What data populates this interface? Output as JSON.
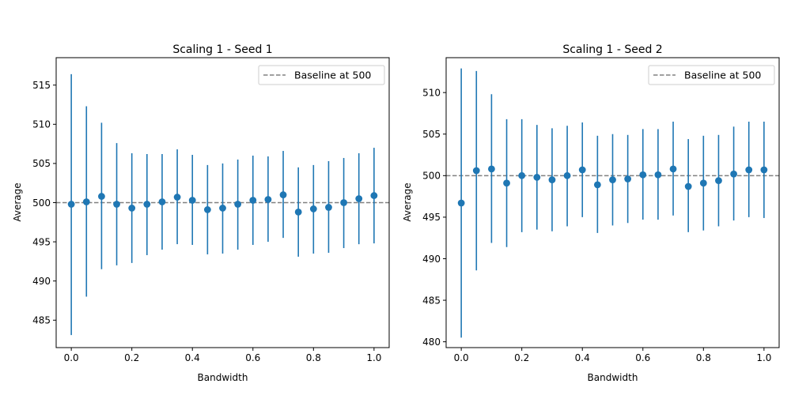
{
  "chart_data": [
    {
      "type": "scatter",
      "title": "Scaling 1 - Seed 1",
      "xlabel": "Bandwidth",
      "ylabel": "Average",
      "xlim": [
        -0.05,
        1.05
      ],
      "ylim": [
        481.5,
        518.5
      ],
      "xticks": [
        "0.0",
        "0.2",
        "0.4",
        "0.6",
        "0.8",
        "1.0"
      ],
      "yticks": [
        "485",
        "490",
        "495",
        "500",
        "505",
        "510",
        "515"
      ],
      "baseline": {
        "name": "Baseline at 500",
        "value": 500
      },
      "legend": "upper right",
      "color": "#1f77b4",
      "x": [
        0.0,
        0.05,
        0.1,
        0.15,
        0.2,
        0.25,
        0.3,
        0.35,
        0.4,
        0.45,
        0.5,
        0.55,
        0.6,
        0.65,
        0.7,
        0.75,
        0.8,
        0.85,
        0.9,
        0.95,
        1.0
      ],
      "y": [
        499.8,
        500.1,
        500.8,
        499.8,
        499.3,
        499.8,
        500.1,
        500.7,
        500.3,
        499.1,
        499.3,
        499.8,
        500.3,
        500.4,
        501.0,
        498.8,
        499.2,
        499.4,
        500.0,
        500.5,
        500.9
      ],
      "err_low": [
        483.1,
        488.0,
        491.5,
        492.0,
        492.3,
        493.3,
        494.0,
        494.7,
        494.6,
        493.4,
        493.5,
        494.0,
        494.6,
        495.0,
        495.5,
        493.1,
        493.5,
        493.6,
        494.2,
        494.7,
        494.8
      ],
      "err_high": [
        516.4,
        512.3,
        510.2,
        507.6,
        506.3,
        506.2,
        506.2,
        506.8,
        506.1,
        504.8,
        505.0,
        505.5,
        506.0,
        505.9,
        506.6,
        504.5,
        504.8,
        505.3,
        505.7,
        506.3,
        507.0
      ]
    },
    {
      "type": "scatter",
      "title": "Scaling 1 - Seed 2",
      "xlabel": "Bandwidth",
      "ylabel": "Average",
      "xlim": [
        -0.05,
        1.05
      ],
      "ylim": [
        479.3,
        514.2
      ],
      "xticks": [
        "0.0",
        "0.2",
        "0.4",
        "0.6",
        "0.8",
        "1.0"
      ],
      "yticks": [
        "480",
        "485",
        "490",
        "495",
        "500",
        "505",
        "510"
      ],
      "baseline": {
        "name": "Baseline at 500",
        "value": 500
      },
      "legend": "upper right",
      "color": "#1f77b4",
      "x": [
        0.0,
        0.05,
        0.1,
        0.15,
        0.2,
        0.25,
        0.3,
        0.35,
        0.4,
        0.45,
        0.5,
        0.55,
        0.6,
        0.65,
        0.7,
        0.75,
        0.8,
        0.85,
        0.9,
        0.95,
        1.0
      ],
      "y": [
        496.7,
        500.6,
        500.8,
        499.1,
        500.0,
        499.8,
        499.5,
        500.0,
        500.7,
        498.9,
        499.5,
        499.6,
        500.1,
        500.1,
        500.8,
        498.7,
        499.1,
        499.4,
        500.2,
        500.7,
        500.7
      ],
      "err_low": [
        480.5,
        488.6,
        491.9,
        491.4,
        493.2,
        493.5,
        493.3,
        493.9,
        495.0,
        493.1,
        494.0,
        494.3,
        494.7,
        494.7,
        495.2,
        493.2,
        493.4,
        493.9,
        494.6,
        495.0,
        494.9
      ],
      "err_high": [
        512.9,
        512.6,
        509.8,
        506.8,
        506.8,
        506.1,
        505.7,
        506.0,
        506.4,
        504.8,
        505.0,
        504.9,
        505.6,
        505.6,
        506.5,
        504.4,
        504.8,
        504.9,
        505.9,
        506.5,
        506.5
      ]
    }
  ]
}
